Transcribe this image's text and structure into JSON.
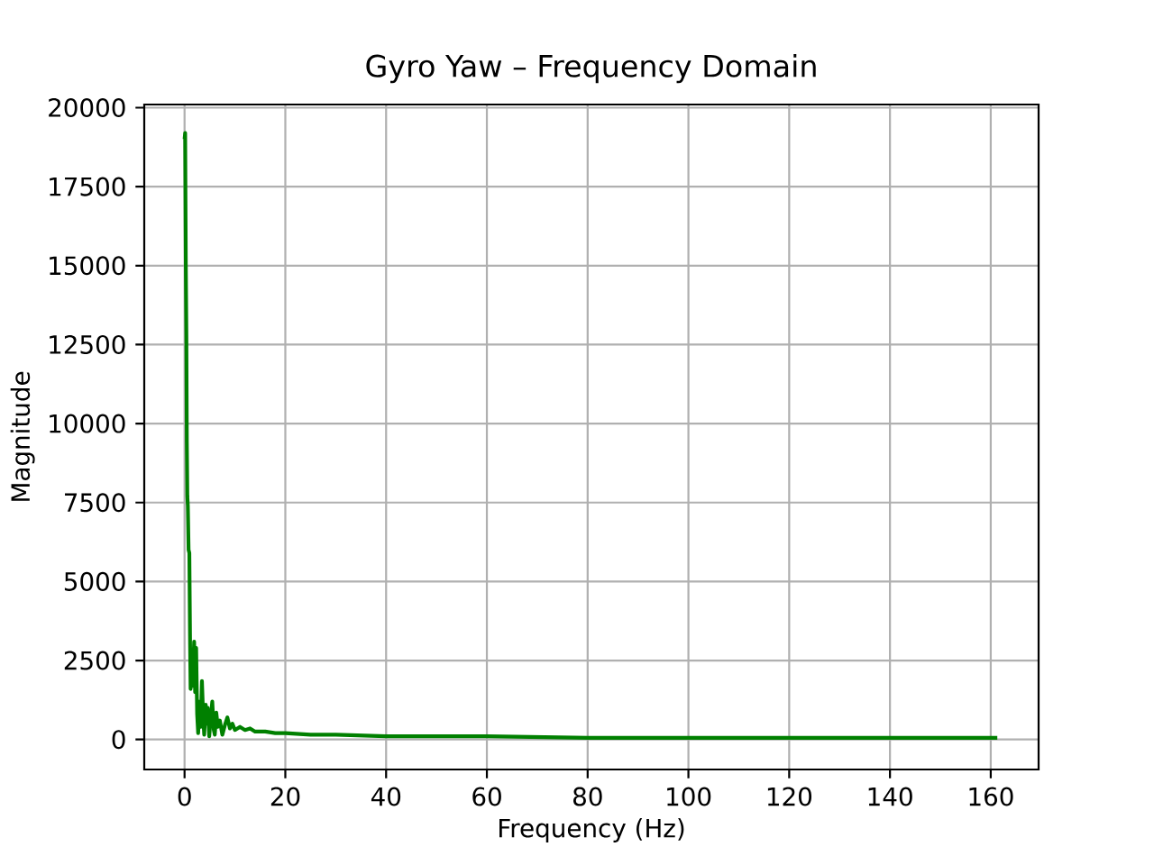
{
  "chart_data": {
    "type": "line",
    "title": "Gyro Yaw – Frequency Domain",
    "xlabel": "Frequency (Hz)",
    "ylabel": "Magnitude",
    "x": [
      0,
      0.12,
      0.25,
      0.36,
      0.45,
      0.55,
      0.65,
      0.8,
      0.95,
      1.1,
      1.2,
      1.4,
      1.6,
      1.9,
      2.1,
      2.3,
      2.5,
      2.7,
      3.0,
      3.2,
      3.45,
      3.7,
      3.9,
      4.2,
      4.4,
      4.6,
      4.9,
      5.2,
      5.5,
      5.8,
      6.0,
      6.3,
      6.6,
      7.0,
      7.5,
      8.0,
      8.5,
      9.0,
      9.5,
      10,
      11,
      12,
      13,
      14,
      16,
      18,
      20,
      25,
      30,
      40,
      50,
      60,
      80,
      100,
      120,
      140,
      161.3
    ],
    "series": [
      {
        "color": "#008000",
        "values": [
          19000,
          19200,
          15000,
          12800,
          9400,
          7700,
          7400,
          6000,
          5900,
          3000,
          1600,
          2200,
          1700,
          3100,
          1500,
          2900,
          800,
          200,
          1200,
          400,
          1850,
          700,
          150,
          1100,
          500,
          1000,
          100,
          700,
          1200,
          300,
          150,
          850,
          400,
          600,
          150,
          450,
          700,
          350,
          500,
          300,
          400,
          300,
          350,
          250,
          250,
          200,
          200,
          150,
          150,
          100,
          100,
          100,
          50,
          50,
          50,
          50,
          50
        ]
      }
    ],
    "xlim": [
      -8,
      169.5
    ],
    "ylim": [
      -950,
      20100
    ],
    "xticks": [
      0,
      20,
      40,
      60,
      80,
      100,
      120,
      140,
      160
    ],
    "yticks": [
      0,
      2500,
      5000,
      7500,
      10000,
      12500,
      15000,
      17500,
      20000
    ],
    "grid": true
  }
}
